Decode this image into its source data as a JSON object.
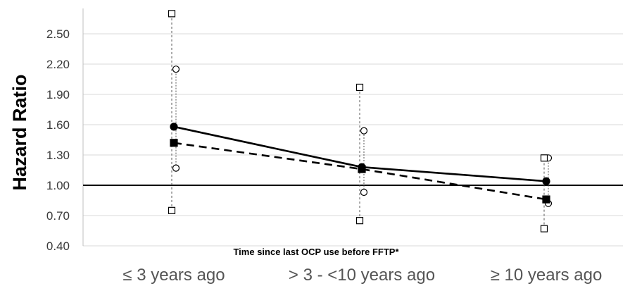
{
  "chart_data": {
    "type": "line",
    "title": "",
    "xlabel": "Time since last OCP use before FFTP*",
    "ylabel": "Hazard Ratio",
    "categories": [
      "≤ 3 years ago",
      "> 3 - <10 years ago",
      "≥ 10 years ago"
    ],
    "ylim": [
      0.4,
      2.7
    ],
    "yticks": [
      "0.40",
      "0.70",
      "1.00",
      "1.30",
      "1.60",
      "1.90",
      "2.20",
      "2.50"
    ],
    "reference_line": 1.0,
    "grid": "horizontal",
    "series": [
      {
        "values": [
          1.58,
          1.18,
          1.04
        ],
        "ci_lower": [
          1.17,
          0.93,
          0.82
        ],
        "ci_upper": [
          2.15,
          1.54,
          1.27
        ],
        "line_style": "solid",
        "marker": "filled-circle",
        "ci_marker": "open-circle",
        "color": "#000000"
      },
      {
        "values": [
          1.42,
          1.16,
          0.86
        ],
        "ci_lower": [
          0.75,
          0.65,
          0.57
        ],
        "ci_upper": [
          2.7,
          1.97,
          1.27
        ],
        "line_style": "dashed",
        "marker": "filled-square",
        "ci_marker": "open-square",
        "color": "#000000"
      }
    ]
  }
}
